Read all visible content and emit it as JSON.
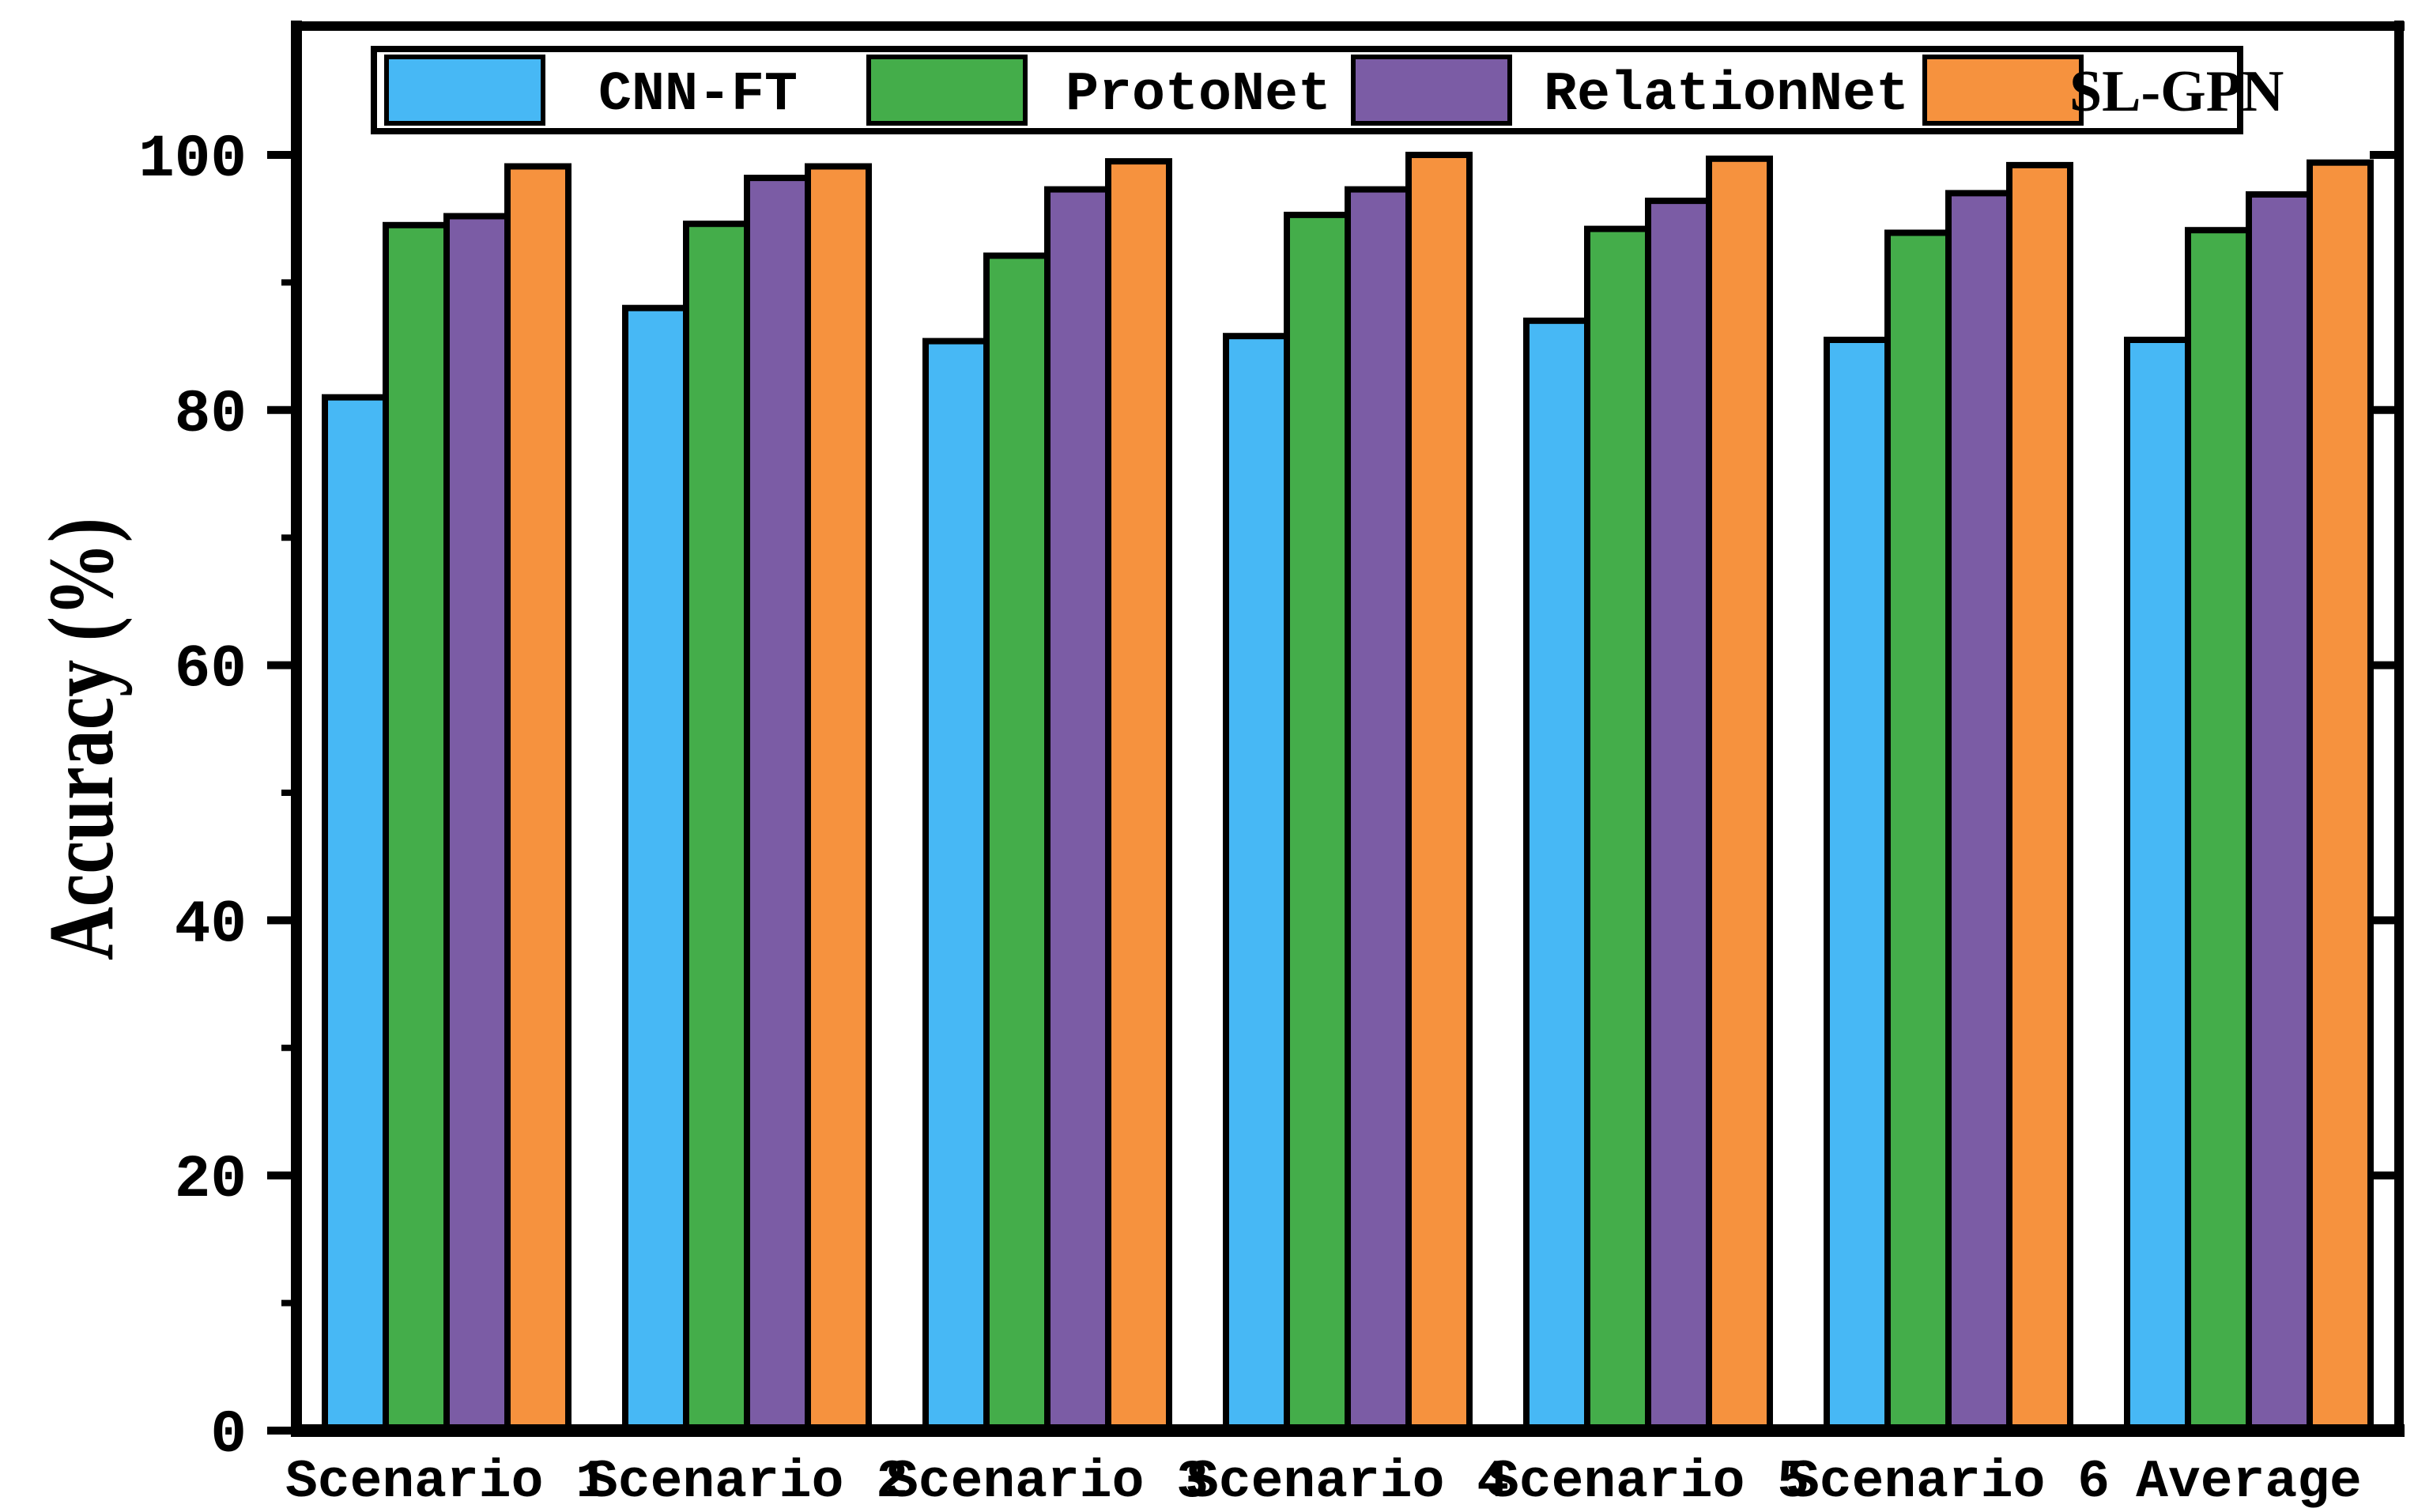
{
  "chart_data": {
    "type": "bar",
    "title": "",
    "xlabel": "",
    "ylabel": "Accuracy (%)",
    "ylim": [
      0,
      110
    ],
    "yticks": [
      0,
      20,
      40,
      60,
      80,
      100
    ],
    "minor_yticks": [
      10,
      30,
      50,
      70,
      90
    ],
    "grid": false,
    "legend_position": "top",
    "axis_color": "#000000",
    "bar_border_color": "#000000",
    "categories": [
      "Scenario 1",
      "Scenario 2",
      "Scenario 3",
      "Scenario 4",
      "Scenario 5",
      "Scenario 6",
      "Average"
    ],
    "series": [
      {
        "name": "CNN-FT",
        "color": "#47b8f5",
        "values": [
          81.0,
          88.0,
          85.4,
          85.8,
          87.0,
          85.5,
          85.5
        ]
      },
      {
        "name": "ProtoNet",
        "color": "#44ad4a",
        "values": [
          94.5,
          94.6,
          92.1,
          95.3,
          94.2,
          93.9,
          94.1
        ]
      },
      {
        "name": "RelationNet",
        "color": "#7b5ca5",
        "values": [
          95.2,
          98.2,
          97.3,
          97.3,
          96.4,
          97.0,
          96.9
        ]
      },
      {
        "name": "SL-GPN",
        "color": "#f6923e",
        "values": [
          99.1,
          99.1,
          99.5,
          100.0,
          99.7,
          99.2,
          99.4
        ]
      }
    ]
  }
}
